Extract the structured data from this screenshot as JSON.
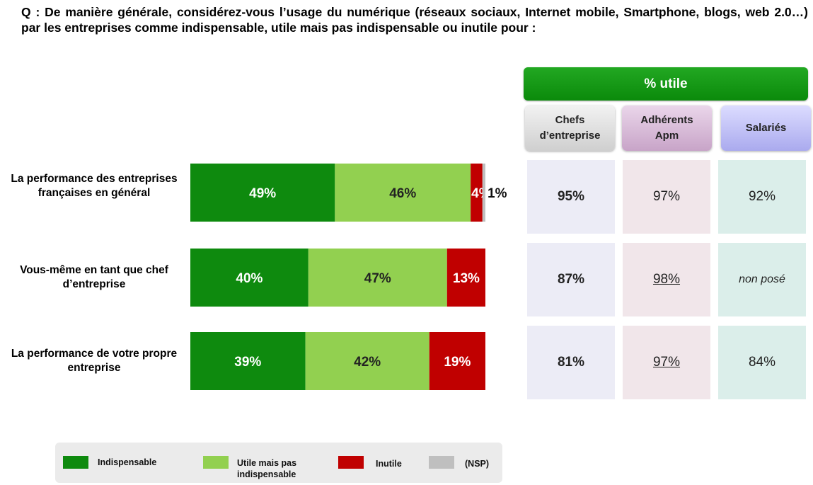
{
  "question": "Q : De manière générale, considérez-vous l’usage du numérique (réseaux sociaux, Internet mobile, Smartphone, blogs, web 2.0…) par les entreprises comme indispensable, utile mais pas indispensable ou inutile pour :",
  "table": {
    "header": "% utile",
    "columns": [
      {
        "line1": "Chefs",
        "line2": "d’entreprise"
      },
      {
        "line1": "Adhérents",
        "line2": "Apm"
      },
      {
        "line1": "Salariés",
        "line2": ""
      }
    ],
    "rows": [
      [
        "95%",
        "97%",
        "92%"
      ],
      [
        "87%",
        "98%",
        "non posé"
      ],
      [
        "81%",
        "97%",
        "84%"
      ]
    ]
  },
  "rows": [
    {
      "label": "La performance des entreprises françaises en général"
    },
    {
      "label": "Vous-même en tant que chef d’entreprise"
    },
    {
      "label": "La performance de votre propre entreprise"
    }
  ],
  "legend": [
    {
      "label": "Indispensable",
      "color": "#0e8a0e"
    },
    {
      "label": "Utile mais pas indispensable",
      "color": "#92d050"
    },
    {
      "label": "Inutile",
      "color": "#c00000"
    },
    {
      "label": "(NSP)",
      "color": "#bfbfbf"
    }
  ],
  "chart_data": {
    "type": "bar",
    "orientation": "horizontal",
    "stacked": true,
    "categories": [
      "La performance des entreprises françaises en général",
      "Vous-même en tant que chef d’entreprise",
      "La performance de votre propre entreprise"
    ],
    "series": [
      {
        "name": "Indispensable",
        "color": "#0e8a0e",
        "values": [
          49,
          40,
          39
        ],
        "labels": [
          "49%",
          "40%",
          "39%"
        ]
      },
      {
        "name": "Utile mais pas indispensable",
        "color": "#92d050",
        "values": [
          46,
          47,
          42
        ],
        "labels": [
          "46%",
          "47%",
          "42%"
        ]
      },
      {
        "name": "Inutile",
        "color": "#c00000",
        "values": [
          4,
          13,
          19
        ],
        "labels": [
          "4%",
          "13%",
          "19%"
        ]
      },
      {
        "name": "(NSP)",
        "color": "#bfbfbf",
        "values": [
          1,
          0,
          0
        ],
        "labels": [
          "1%",
          "",
          ""
        ]
      }
    ],
    "xlim": [
      0,
      100
    ]
  }
}
